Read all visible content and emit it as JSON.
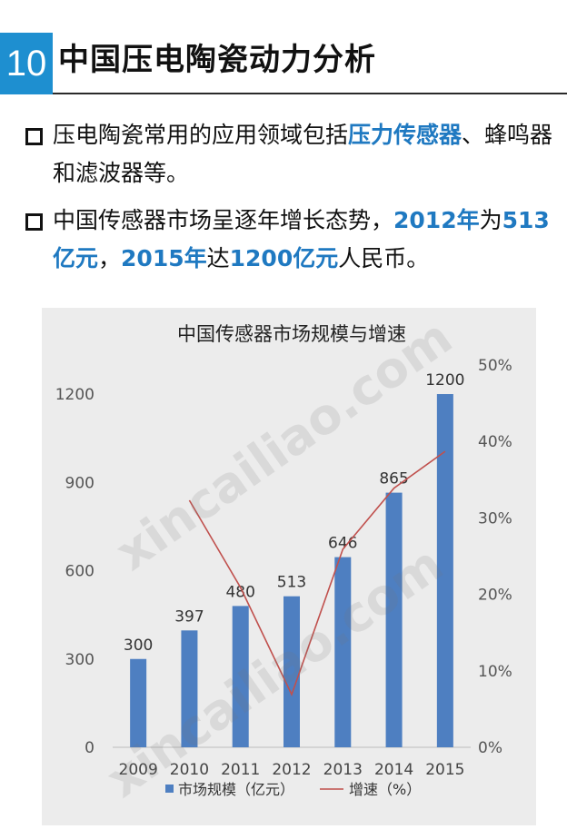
{
  "header": {
    "number": "10",
    "title": "中国压电陶瓷动力分析"
  },
  "bullets": [
    {
      "segments": [
        {
          "text": "压电陶瓷常用的应用领域包括",
          "hl": false
        },
        {
          "text": "压力传感器",
          "hl": true
        },
        {
          "text": "、蜂鸣器和滤波器等。",
          "hl": false
        }
      ]
    },
    {
      "segments": [
        {
          "text": "中国传感器市场呈逐年增长态势，",
          "hl": false
        },
        {
          "text": "2012年",
          "hl": true
        },
        {
          "text": "为",
          "hl": false
        },
        {
          "text": "513亿元",
          "hl": true
        },
        {
          "text": "，",
          "hl": false
        },
        {
          "text": "2015年",
          "hl": true
        },
        {
          "text": "达",
          "hl": false
        },
        {
          "text": "1200亿元",
          "hl": true
        },
        {
          "text": "人民币。",
          "hl": false
        }
      ]
    }
  ],
  "watermark": "xincailiao.com",
  "colors": {
    "accent": "#1e8fd0",
    "highlight": "#1f79c1",
    "bar": "#4e7fc1",
    "line": "#c0504d",
    "chart_bg": "#ececec"
  },
  "chart_data": {
    "type": "bar",
    "title": "中国传感器市场规模与增速",
    "categories": [
      "2009",
      "2010",
      "2011",
      "2012",
      "2013",
      "2014",
      "2015"
    ],
    "series": [
      {
        "name": "市场规模（亿元）",
        "type": "bar",
        "axis": "left",
        "values": [
          300,
          397,
          480,
          513,
          646,
          865,
          1200
        ],
        "data_labels": [
          "300",
          "397",
          "480",
          "513",
          "646",
          "865",
          "1200"
        ]
      },
      {
        "name": "增速（%）",
        "type": "line",
        "axis": "right",
        "values": [
          null,
          32.3,
          20.9,
          6.9,
          25.9,
          33.9,
          38.7
        ]
      }
    ],
    "y_left": {
      "ylim": [
        0,
        1200
      ],
      "ticks": [
        "0",
        "300",
        "600",
        "900",
        "1200"
      ]
    },
    "y_right": {
      "ylim": [
        0,
        50
      ],
      "ticks": [
        "0%",
        "10%",
        "20%",
        "30%",
        "40%",
        "50%"
      ]
    },
    "grid": false,
    "legend": "bottom"
  }
}
